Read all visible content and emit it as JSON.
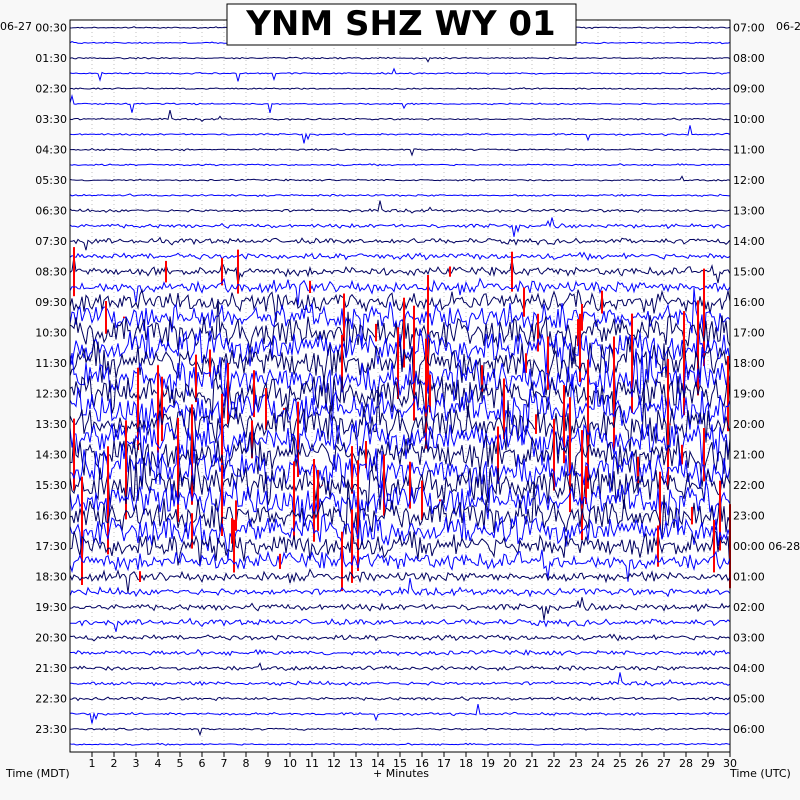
{
  "chart_data": {
    "type": "line",
    "title": "YNM SHZ WY 01",
    "xlabel": "+ Minutes",
    "left_axis_label": "Time (MDT)",
    "right_axis_label": "Time (UTC)",
    "left_date": "06-27",
    "right_date_top": "06-2",
    "right_date_midnight": "06-28",
    "x_range": [
      0,
      30
    ],
    "x_ticks": [
      "1",
      "2",
      "3",
      "4",
      "5",
      "6",
      "7",
      "8",
      "9",
      "10",
      "11",
      "12",
      "13",
      "14",
      "15",
      "16",
      "17",
      "18",
      "19",
      "20",
      "21",
      "22",
      "23",
      "24",
      "25",
      "26",
      "27",
      "28",
      "29",
      "30"
    ],
    "left_ticks": [
      "00:30",
      "01:30",
      "02:30",
      "03:30",
      "04:30",
      "05:30",
      "06:30",
      "07:30",
      "08:30",
      "09:30",
      "10:30",
      "11:30",
      "12:30",
      "13:30",
      "14:30",
      "15:30",
      "16:30",
      "17:30",
      "18:30",
      "19:30",
      "20:30",
      "21:30",
      "22:30",
      "23:30"
    ],
    "right_ticks": [
      "07:00",
      "08:00",
      "09:00",
      "10:00",
      "11:00",
      "12:00",
      "13:00",
      "14:00",
      "15:00",
      "16:00",
      "17:00",
      "18:00",
      "19:00",
      "20:00",
      "21:00",
      "22:00",
      "23:00",
      "00:00",
      "01:00",
      "02:00",
      "03:00",
      "04:00",
      "05:00",
      "06:00"
    ],
    "num_traces": 48,
    "trace_minutes": 30,
    "trace_colors": [
      "#000060",
      "#0000ff"
    ],
    "clip_color": "#ff0000",
    "background": "#ffffff",
    "grid": "dotted",
    "activity_levels": [
      0.6,
      0.6,
      0.6,
      0.6,
      0.6,
      0.6,
      0.7,
      0.7,
      0.7,
      0.7,
      0.7,
      0.8,
      1.2,
      1.6,
      2.2,
      2.6,
      3.5,
      5,
      8,
      11,
      13,
      14,
      15,
      15,
      15,
      15,
      15,
      15,
      15,
      15,
      15,
      14,
      13,
      12,
      10,
      7,
      4,
      3,
      2.6,
      2.4,
      2.2,
      2,
      1.8,
      1.6,
      1.3,
      1,
      0.8,
      0.7
    ]
  }
}
